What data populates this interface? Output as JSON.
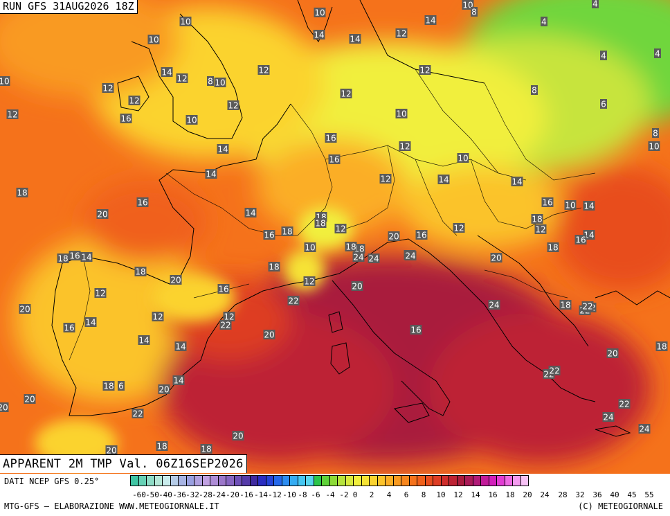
{
  "map": {
    "run_title": "RUN GFS 31AUG2026 18Z",
    "product_title": "APPARENT 2M TMP Val. 06Z16SEP2026",
    "source_text": "DATI NCEP GFS 0.25°",
    "credit_text": "MTG-GFS — ELABORAZIONE WWW.METEOGIORNALE.IT",
    "copyright_text": "(C) METEOGIORNALE",
    "value_labels": [
      "10",
      "10",
      "14",
      "12",
      "10",
      "14",
      "12",
      "14",
      "10",
      "8",
      "4",
      "4",
      "4",
      "10",
      "12",
      "14",
      "12",
      "8",
      "10",
      "12",
      "12",
      "16",
      "12",
      "12",
      "10",
      "12",
      "10",
      "16",
      "8",
      "6",
      "8",
      "10",
      "4",
      "14",
      "12",
      "14",
      "16",
      "10",
      "12",
      "14",
      "14",
      "18",
      "16",
      "10",
      "14",
      "18",
      "16",
      "18",
      "14",
      "20",
      "18",
      "12",
      "20",
      "16",
      "12",
      "14",
      "18",
      "12",
      "16",
      "18",
      "16",
      "10",
      "20",
      "18",
      "14",
      "18",
      "24",
      "22",
      "18",
      "20",
      "18",
      "16",
      "14",
      "18",
      "20",
      "12",
      "12",
      "20",
      "16",
      "22",
      "24",
      "20",
      "12",
      "12",
      "14",
      "22",
      "18",
      "22",
      "16",
      "14",
      "20",
      "16",
      "14",
      "20",
      "18",
      "22",
      "20",
      "20",
      "22",
      "18",
      "6",
      "20",
      "18",
      "22",
      "22",
      "20",
      "18",
      "24",
      "24",
      "22",
      "22",
      "24",
      "24",
      "20"
    ],
    "legend": {
      "colors": [
        "#3fc5a3",
        "#66d1b5",
        "#8fdcc6",
        "#b6e8d8",
        "#c9ecec",
        "#b6cce8",
        "#a8b4e4",
        "#9aa0e0",
        "#b0a0e0",
        "#c1a1e2",
        "#ae8cd6",
        "#9c77ca",
        "#8765c1",
        "#6f50b8",
        "#553aa9",
        "#3f2aa0",
        "#2a2dc1",
        "#2443d7",
        "#2468ea",
        "#2b8cf1",
        "#34acf3",
        "#45c7f2",
        "#5ad6ee",
        "#2cc54a",
        "#5fd23a",
        "#8cdb37",
        "#b5e33c",
        "#d8e93e",
        "#f1ef3d",
        "#f6e335",
        "#fbd32f",
        "#fcc32a",
        "#fbae25",
        "#f99a20",
        "#f8861c",
        "#f5721b",
        "#f0601a",
        "#e84e1e",
        "#de3d24",
        "#cf2d2b",
        "#bd2234",
        "#a91b3e",
        "#aa1a57",
        "#b11a78",
        "#c11b99",
        "#d21fbb",
        "#e23cd3",
        "#ee69e3",
        "#f59cf0",
        "#f7c2f5"
      ],
      "ticks": [
        "-60",
        "-50",
        "-40",
        "-36",
        "-32",
        "-28",
        "-24",
        "-20",
        "-16",
        "-14",
        "-12",
        "-10",
        "-8",
        "-6",
        "-4",
        "-2",
        "0",
        "2",
        "4",
        "6",
        "8",
        "10",
        "12",
        "14",
        "16",
        "18",
        "20",
        "24",
        "28",
        "32",
        "36",
        "40",
        "45",
        "55"
      ]
    }
  }
}
